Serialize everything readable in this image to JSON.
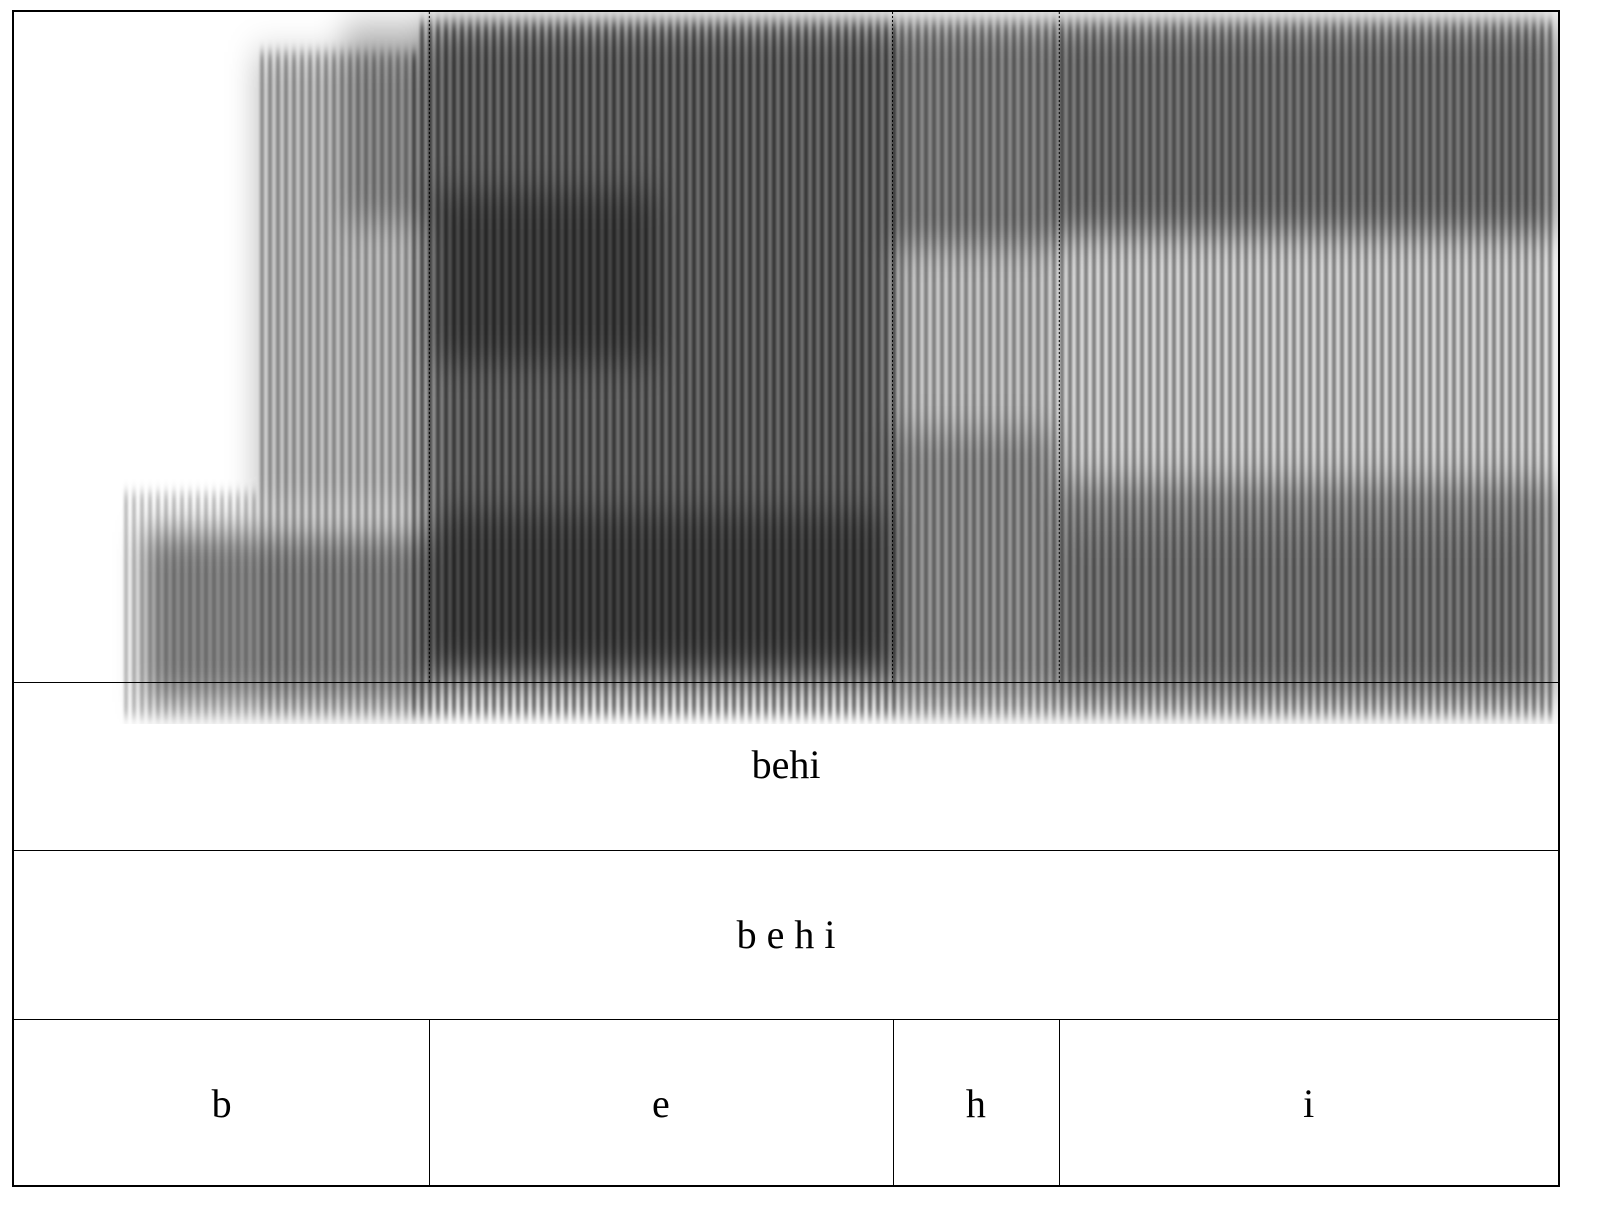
{
  "tiers": {
    "word": "behi",
    "phones_string": "b e h i",
    "segments": [
      {
        "label": "b",
        "start": 0.0,
        "end": 0.269
      },
      {
        "label": "e",
        "start": 0.269,
        "end": 0.569
      },
      {
        "label": "h",
        "start": 0.569,
        "end": 0.677
      },
      {
        "label": "i",
        "start": 0.677,
        "end": 1.0
      }
    ]
  },
  "colors": {
    "ink": "#000000",
    "background": "#ffffff"
  }
}
